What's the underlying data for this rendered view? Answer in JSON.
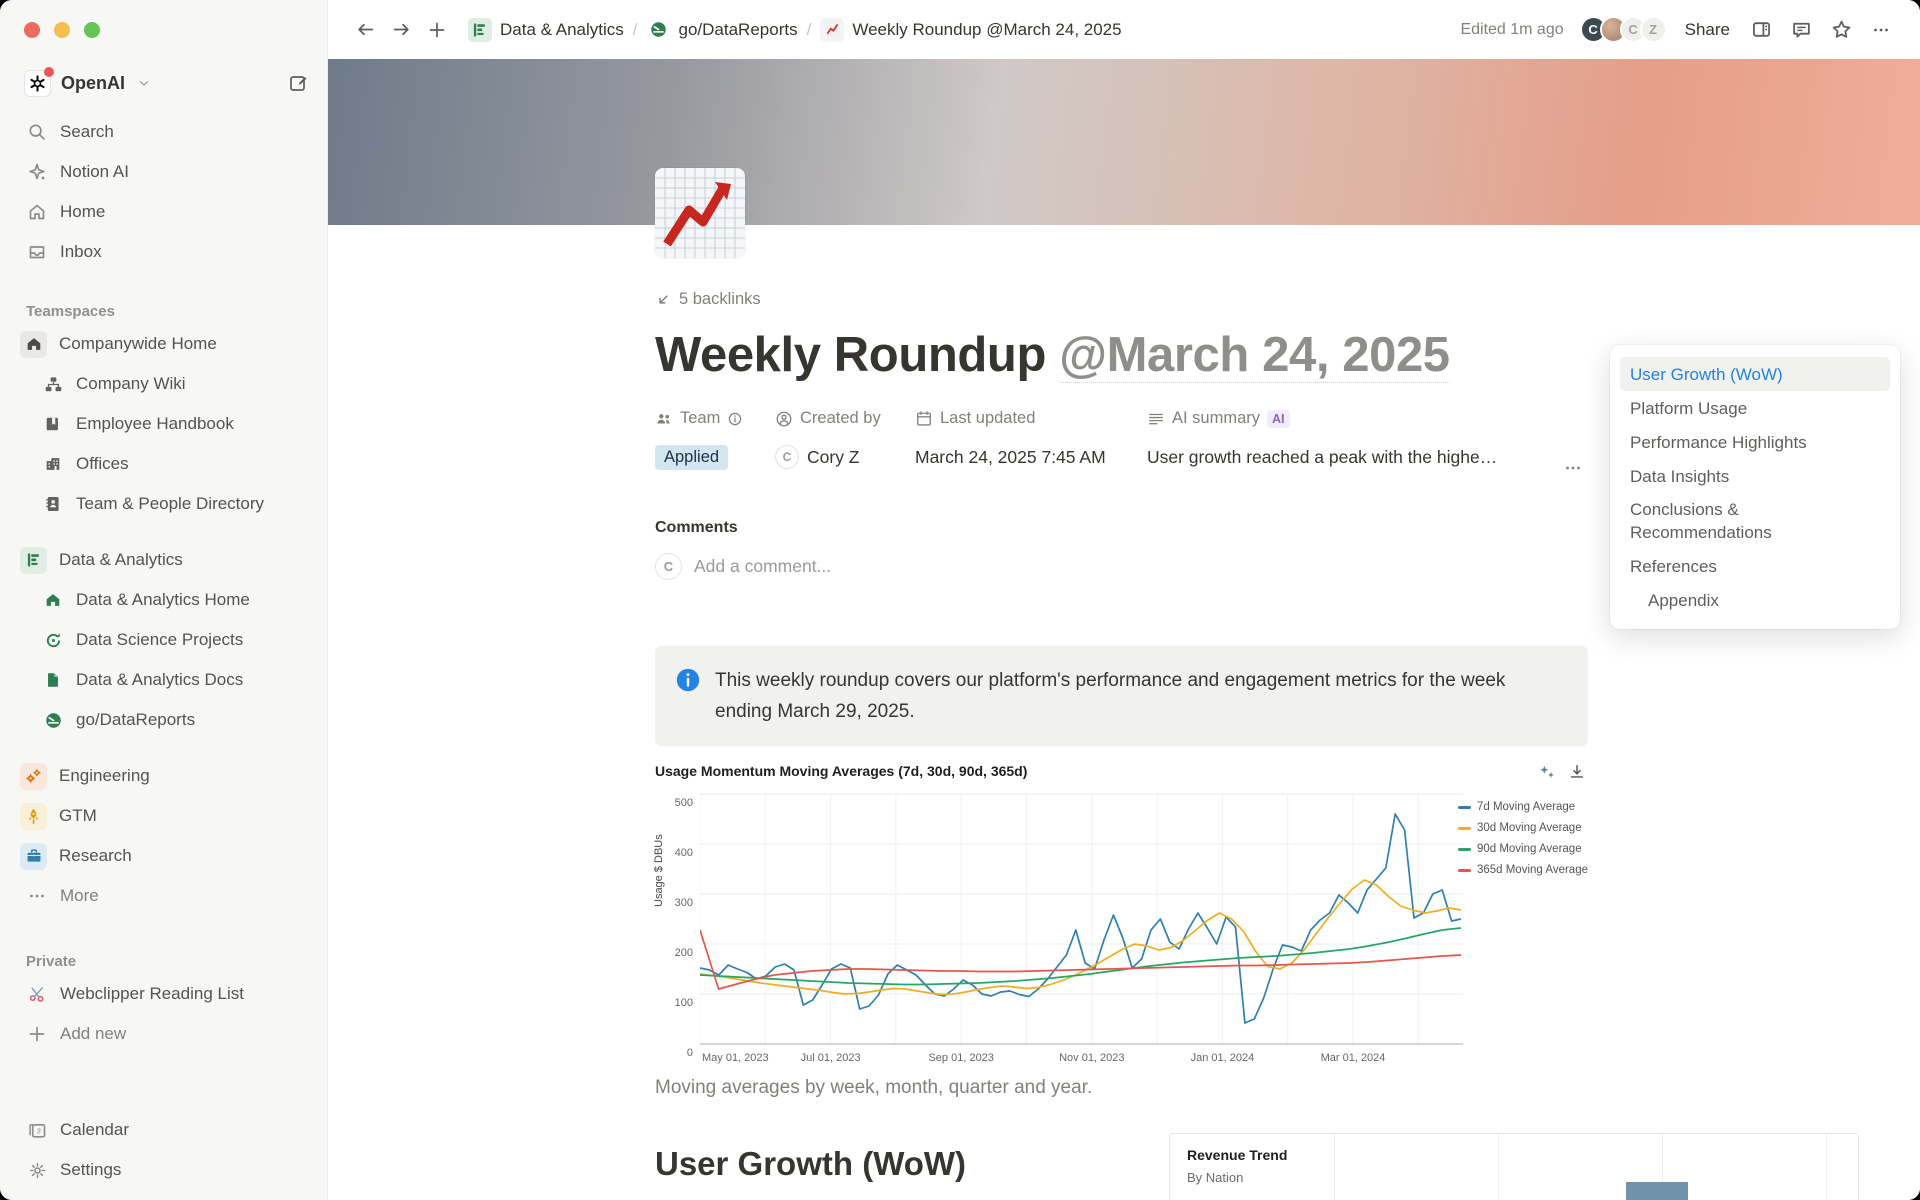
{
  "topbar": {
    "breadcrumbs": [
      {
        "icon": "chart-bars-green",
        "label": "Data & Analytics"
      },
      {
        "icon": "gauge-green",
        "label": "go/DataReports"
      },
      {
        "icon": "chart-red",
        "label": "Weekly Roundup @March 24, 2025"
      }
    ],
    "separator": "/",
    "edited": "Edited 1m ago",
    "avatars": [
      {
        "initial": "C",
        "style": "dark"
      },
      {
        "initial": "",
        "style": "photo"
      },
      {
        "initial": "C",
        "style": "light"
      },
      {
        "initial": "Z",
        "style": "light"
      }
    ],
    "share_label": "Share"
  },
  "sidebar": {
    "workspace_name": "OpenAI",
    "search": "Search",
    "notion_ai": "Notion AI",
    "home": "Home",
    "inbox": "Inbox",
    "teamspaces_label": "Teamspaces",
    "companywide_home": "Companywide Home",
    "company_wiki": "Company Wiki",
    "employee_handbook": "Employee Handbook",
    "offices": "Offices",
    "team_directory": "Team & People Directory",
    "data_analytics": "Data & Analytics",
    "da_home": "Data & Analytics Home",
    "ds_projects": "Data Science Projects",
    "da_docs": "Data & Analytics Docs",
    "go_datareports": "go/DataReports",
    "engineering": "Engineering",
    "gtm": "GTM",
    "research": "Research",
    "more": "More",
    "private_label": "Private",
    "webclipper": "Webclipper Reading List",
    "add_new": "Add new",
    "calendar": "Calendar",
    "settings": "Settings"
  },
  "page": {
    "backlinks": "5 backlinks",
    "title": "Weekly Roundup",
    "title_mention": "@March 24, 2025",
    "properties": {
      "team_label": "Team",
      "team_value": "Applied",
      "created_by_label": "Created by",
      "created_by_initial": "C",
      "created_by_value": "Cory Z",
      "last_updated_label": "Last updated",
      "last_updated_value": "March 24, 2025 7:45 AM",
      "ai_summary_label": "AI summary",
      "ai_badge": "AI",
      "ai_summary_value": "User growth reached a peak with the highe…"
    },
    "comments_heading": "Comments",
    "comment_avatar_initial": "C",
    "comment_placeholder": "Add a comment...",
    "callout_text": "This weekly roundup covers our platform's performance and engagement metrics for the week ending March 29, 2025.",
    "chart_caption": "Moving averages by week, month, quarter and year.",
    "section_heading": "User Growth (WoW)"
  },
  "toc": {
    "items": [
      {
        "label": "User Growth (WoW)",
        "active": true,
        "indent": 0
      },
      {
        "label": "Platform Usage",
        "active": false,
        "indent": 0
      },
      {
        "label": "Performance Highlights",
        "active": false,
        "indent": 0
      },
      {
        "label": "Data Insights",
        "active": false,
        "indent": 0
      },
      {
        "label": "Conclusions & Recommendations",
        "active": false,
        "indent": 0
      },
      {
        "label": "References",
        "active": false,
        "indent": 0
      },
      {
        "label": "Appendix",
        "active": false,
        "indent": 1
      }
    ]
  },
  "chart_data": [
    {
      "type": "line",
      "title": "Usage Momentum Moving Averages (7d, 30d, 90d, 365d)",
      "xlabel": "",
      "ylabel": "Usage $ DBUs",
      "ylim": [
        0,
        500
      ],
      "y_ticks": [
        0,
        100,
        200,
        300,
        400,
        500
      ],
      "x_tick_labels": [
        "May 01, 2023",
        "Jul 01, 2023",
        "Sep 01, 2023",
        "Nov 01, 2023",
        "Jan 01, 2024",
        "Mar 01, 2024"
      ],
      "grid": true,
      "legend_position": "right",
      "series": [
        {
          "name": "7d Moving Average",
          "color": "#2f7fae",
          "values": [
            152,
            148,
            138,
            158,
            150,
            143,
            130,
            136,
            154,
            160,
            148,
            78,
            88,
            118,
            150,
            160,
            152,
            70,
            76,
            98,
            140,
            158,
            148,
            138,
            118,
            100,
            96,
            110,
            128,
            118,
            100,
            96,
            104,
            106,
            99,
            95,
            110,
            130,
            154,
            178,
            228,
            162,
            150,
            208,
            258,
            212,
            152,
            170,
            228,
            250,
            204,
            190,
            230,
            262,
            232,
            200,
            254,
            234,
            42,
            50,
            92,
            150,
            198,
            194,
            186,
            228,
            248,
            262,
            298,
            282,
            262,
            308,
            330,
            352,
            460,
            428,
            252,
            262,
            300,
            308,
            246,
            250
          ]
        },
        {
          "name": "30d Moving Average",
          "color": "#efae1f",
          "values": [
            140,
            137,
            134,
            130,
            126,
            122,
            119,
            116,
            113,
            110,
            107,
            103,
            100,
            101,
            104,
            108,
            111,
            110,
            106,
            102,
            99,
            100,
            104,
            109,
            113,
            116,
            114,
            111,
            113,
            119,
            127,
            137,
            149,
            162,
            176,
            190,
            200,
            196,
            188,
            193,
            207,
            227,
            247,
            262,
            250,
            225,
            185,
            155,
            150,
            162,
            188,
            220,
            252,
            282,
            310,
            328,
            318,
            295,
            276,
            268,
            262,
            266,
            272,
            268
          ]
        },
        {
          "name": "90d Moving Average",
          "color": "#27a567",
          "values": [
            138,
            136,
            134,
            132,
            130,
            128,
            126,
            124,
            122,
            121,
            120,
            119,
            119,
            120,
            121,
            122,
            124,
            126,
            129,
            132,
            136,
            140,
            145,
            150,
            155,
            159,
            163,
            166,
            169,
            172,
            174,
            176,
            179,
            182,
            186,
            190,
            196,
            203,
            211,
            220,
            228,
            232
          ]
        },
        {
          "name": "365d Moving Average",
          "color": "#e2574c",
          "values": [
            228,
            110,
            120,
            130,
            138,
            142,
            146,
            148,
            150,
            150,
            149,
            148,
            147,
            146,
            146,
            145,
            145,
            145,
            146,
            147,
            148,
            149,
            150,
            151,
            152,
            153,
            154,
            155,
            156,
            157,
            157,
            158,
            159,
            160,
            161,
            162,
            164,
            167,
            170,
            173,
            176,
            178
          ]
        }
      ]
    },
    {
      "type": "bar",
      "title": "Revenue Trend",
      "subtitle": "By Nation"
    }
  ],
  "colors": {
    "accent_blue": "#2383e2",
    "tag_blue_bg": "#d3e5ef",
    "ai_purple": "#9065b0",
    "teamspace_green": "#2f7d51",
    "engineering_orange": "#d9730d",
    "gtm_yellow": "#d9a20d",
    "research_blue": "#337ea9",
    "revenue_bar_blue": "#7092ab"
  },
  "icons": {
    "search-icon": "magnifier",
    "notion-ai-icon": "sparkle",
    "home-icon": "house",
    "inbox-icon": "tray",
    "compose-icon": "pencil-square",
    "chevron-down-icon": "chevron",
    "back-icon": "arrow-left",
    "forward-icon": "arrow-right",
    "new-tab-icon": "plus",
    "sitemap-icon": "org-chart",
    "book-icon": "book",
    "building-icon": "building",
    "directory-icon": "contact-book",
    "chart-bars-icon": "bar-chart",
    "refresh-icon": "circular-arrow",
    "page-icon": "document",
    "gauge-icon": "speedometer",
    "gears-icon": "gears",
    "rocket-icon": "rocket",
    "briefcase-icon": "briefcase",
    "ellipsis-icon": "dots",
    "scissors-icon": "scissors",
    "plus-icon": "plus",
    "calendar-icon": "calendar",
    "gear-icon": "gear",
    "panel-icon": "side-panel",
    "comment-icon": "speech-bubble",
    "star-icon": "star",
    "backlink-arrow-icon": "arrow-down-left",
    "people-icon": "two-people",
    "person-icon": "person",
    "info-icon": "circle-i",
    "lines-icon": "text-lines",
    "info-filled-icon": "blue-circle-i",
    "sparkles-tool-icon": "sparkles",
    "download-icon": "down-arrow-tray",
    "chart-emoji-icon": "red-line-chart"
  }
}
